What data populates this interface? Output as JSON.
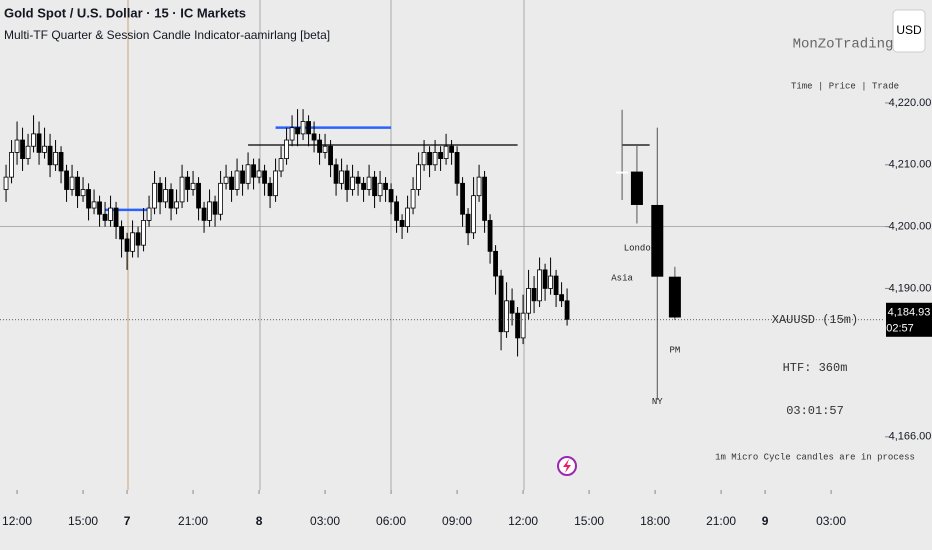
{
  "chart_data": {
    "type": "candlestick",
    "title": "Gold Spot / U.S. Dollar · 15 · IC Markets",
    "subtitle": "Multi-TF Quarter & Session Candle Indicator-aamirlang [beta]",
    "currency": "USD",
    "up_color": "#ffffff",
    "down_color": "#000000",
    "xlim": [
      -3.1,
      157.8
    ],
    "ylim": [
      4157.4,
      4236.65
    ],
    "xticks": [
      {
        "value": 0,
        "label": "12:00"
      },
      {
        "value": 12,
        "label": "15:00"
      },
      {
        "value": 20,
        "label": "7"
      },
      {
        "value": 32,
        "label": "21:00"
      },
      {
        "value": 44,
        "label": "8"
      },
      {
        "value": 56,
        "label": "03:00"
      },
      {
        "value": 68,
        "label": "06:00"
      },
      {
        "value": 80,
        "label": "09:00"
      },
      {
        "value": 92,
        "label": "12:00"
      },
      {
        "value": 104,
        "label": "15:00"
      },
      {
        "value": 116,
        "label": "18:00"
      },
      {
        "value": 128,
        "label": "21:00"
      },
      {
        "value": 136,
        "label": "9"
      },
      {
        "value": 148,
        "label": "03:00"
      }
    ],
    "yticks": [
      {
        "value": 4220,
        "label": "4,220.00"
      },
      {
        "value": 4210,
        "label": "4,210.00"
      },
      {
        "value": 4200,
        "label": "4,200.00"
      },
      {
        "value": 4190,
        "label": "4,190.00"
      },
      {
        "value": 4166,
        "label": "4,166.00"
      }
    ],
    "candles": [
      [
        -2,
        4206,
        4210,
        4204,
        4208
      ],
      [
        -1,
        4208,
        4214,
        4207,
        4212
      ],
      [
        0,
        4212,
        4217,
        4210,
        4214
      ],
      [
        1,
        4214,
        4216,
        4209,
        4211
      ],
      [
        2,
        4211,
        4215,
        4210,
        4213
      ],
      [
        3,
        4213,
        4218,
        4212,
        4215
      ],
      [
        4,
        4215,
        4217,
        4210,
        4212
      ],
      [
        5,
        4212,
        4216,
        4211,
        4213
      ],
      [
        6,
        4213,
        4215,
        4208,
        4210
      ],
      [
        7,
        4210,
        4214,
        4209,
        4212
      ],
      [
        8,
        4212,
        4213,
        4207,
        4209
      ],
      [
        9,
        4209,
        4210,
        4204,
        4206
      ],
      [
        10,
        4206,
        4210,
        4205,
        4208
      ],
      [
        11,
        4208,
        4209,
        4203,
        4205
      ],
      [
        12,
        4205,
        4208,
        4204,
        4206
      ],
      [
        13,
        4206,
        4207,
        4201,
        4203
      ],
      [
        14,
        4203,
        4206,
        4202,
        4204
      ],
      [
        15,
        4204,
        4205,
        4200,
        4202
      ],
      [
        16,
        4202,
        4204,
        4200,
        4201
      ],
      [
        17,
        4201,
        4205,
        4200,
        4203
      ],
      [
        18,
        4203,
        4204,
        4198,
        4200
      ],
      [
        19,
        4200,
        4201,
        4195,
        4198
      ],
      [
        20,
        4198,
        4199,
        4193,
        4196
      ],
      [
        21,
        4196,
        4201,
        4195,
        4199
      ],
      [
        22,
        4199,
        4200,
        4195,
        4197
      ],
      [
        23,
        4197,
        4203,
        4196,
        4201
      ],
      [
        24,
        4201,
        4205,
        4200,
        4203
      ],
      [
        25,
        4203,
        4209,
        4202,
        4207
      ],
      [
        26,
        4207,
        4208,
        4202,
        4204
      ],
      [
        27,
        4204,
        4208,
        4203,
        4206
      ],
      [
        28,
        4206,
        4207,
        4201,
        4203
      ],
      [
        29,
        4203,
        4206,
        4202,
        4204
      ],
      [
        30,
        4204,
        4210,
        4203,
        4208
      ],
      [
        31,
        4208,
        4209,
        4204,
        4206
      ],
      [
        32,
        4206,
        4209,
        4205,
        4207
      ],
      [
        33,
        4207,
        4208,
        4201,
        4203
      ],
      [
        34,
        4203,
        4204,
        4199,
        4201
      ],
      [
        35,
        4201,
        4206,
        4200,
        4204
      ],
      [
        36,
        4204,
        4205,
        4200,
        4202
      ],
      [
        37,
        4202,
        4209,
        4201,
        4207
      ],
      [
        38,
        4207,
        4210,
        4206,
        4208
      ],
      [
        39,
        4208,
        4209,
        4204,
        4206
      ],
      [
        40,
        4206,
        4211,
        4205,
        4209
      ],
      [
        41,
        4209,
        4210,
        4205,
        4207
      ],
      [
        42,
        4207,
        4212,
        4206,
        4210
      ],
      [
        43,
        4210,
        4211,
        4206,
        4208
      ],
      [
        44,
        4208,
        4211,
        4207,
        4209
      ],
      [
        45,
        4209,
        4210,
        4205,
        4207
      ],
      [
        46,
        4207,
        4208,
        4203,
        4205
      ],
      [
        47,
        4205,
        4211,
        4204,
        4209
      ],
      [
        48,
        4209,
        4213,
        4208,
        4211
      ],
      [
        49,
        4211,
        4216,
        4210,
        4214
      ],
      [
        50,
        4214,
        4218,
        4213,
        4216
      ],
      [
        51,
        4216,
        4219,
        4213,
        4215
      ],
      [
        52,
        4215,
        4219,
        4214,
        4217
      ],
      [
        53,
        4217,
        4218,
        4213,
        4215
      ],
      [
        54,
        4215,
        4217,
        4212,
        4214
      ],
      [
        55,
        4214,
        4215,
        4210,
        4212
      ],
      [
        56,
        4212,
        4215,
        4211,
        4213
      ],
      [
        57,
        4213,
        4214,
        4208,
        4210
      ],
      [
        58,
        4210,
        4211,
        4205,
        4207
      ],
      [
        59,
        4207,
        4211,
        4206,
        4209
      ],
      [
        60,
        4209,
        4210,
        4204,
        4206
      ],
      [
        61,
        4206,
        4210,
        4205,
        4208
      ],
      [
        62,
        4208,
        4209,
        4205,
        4207
      ],
      [
        63,
        4207,
        4208,
        4204,
        4206
      ],
      [
        64,
        4206,
        4210,
        4205,
        4208
      ],
      [
        65,
        4208,
        4209,
        4203,
        4205
      ],
      [
        66,
        4205,
        4209,
        4204,
        4207
      ],
      [
        67,
        4207,
        4208,
        4204,
        4206
      ],
      [
        68,
        4206,
        4207,
        4202,
        4204
      ],
      [
        69,
        4204,
        4205,
        4199,
        4201
      ],
      [
        70,
        4201,
        4202,
        4198,
        4200
      ],
      [
        71,
        4200,
        4205,
        4199,
        4203
      ],
      [
        72,
        4203,
        4208,
        4202,
        4206
      ],
      [
        73,
        4206,
        4212,
        4205,
        4210
      ],
      [
        74,
        4210,
        4214,
        4209,
        4212
      ],
      [
        75,
        4212,
        4213,
        4208,
        4210
      ],
      [
        76,
        4210,
        4214,
        4209,
        4212
      ],
      [
        77,
        4212,
        4213,
        4209,
        4211
      ],
      [
        78,
        4211,
        4215,
        4210,
        4213
      ],
      [
        79,
        4213,
        4214,
        4210,
        4212
      ],
      [
        80,
        4212,
        4213,
        4205,
        4207
      ],
      [
        81,
        4207,
        4208,
        4200,
        4202
      ],
      [
        82,
        4202,
        4203,
        4197,
        4199
      ],
      [
        83,
        4199,
        4208,
        4198,
        4205
      ],
      [
        84,
        4205,
        4210,
        4204,
        4208
      ],
      [
        85,
        4208,
        4209,
        4199,
        4201
      ],
      [
        86,
        4201,
        4202,
        4194,
        4196
      ],
      [
        87,
        4196,
        4197,
        4189,
        4192
      ],
      [
        88,
        4192,
        4193,
        4180,
        4183
      ],
      [
        89,
        4183,
        4191,
        4182,
        4188
      ],
      [
        90,
        4188,
        4190,
        4184,
        4186
      ],
      [
        91,
        4186,
        4187,
        4179,
        4182
      ],
      [
        92,
        4182,
        4189,
        4181,
        4186
      ],
      [
        93,
        4186,
        4193,
        4185,
        4190
      ],
      [
        94,
        4190,
        4192,
        4186,
        4188
      ],
      [
        95,
        4188,
        4195,
        4187,
        4193
      ],
      [
        96,
        4193,
        4194,
        4188,
        4190
      ],
      [
        97,
        4190,
        4195,
        4189,
        4192
      ],
      [
        98,
        4192,
        4193,
        4187,
        4189
      ],
      [
        99,
        4189,
        4191,
        4187,
        4188
      ],
      [
        100,
        4188,
        4190,
        4184,
        4185
      ]
    ],
    "session_candles": [
      {
        "name": "Asia",
        "x": 110,
        "ohlc": [
          4208.6,
          4218.9,
          4204.3,
          4208.9
        ]
      },
      {
        "name": "London",
        "x": 112.7,
        "ohlc": [
          4208.9,
          4213.2,
          4200.5,
          4203.5
        ]
      },
      {
        "name": "NY",
        "x": 116.4,
        "ohlc": [
          4203.5,
          4216.0,
          4172.0,
          4191.9
        ]
      },
      {
        "name": "PM",
        "x": 119.6,
        "ohlc": [
          4191.9,
          4193.5,
          4184.9,
          4185.3
        ]
      }
    ],
    "levels": [
      {
        "value": 4202.7,
        "color": "#2962ff",
        "x": [
          16,
          24
        ]
      },
      {
        "value": 4216.0,
        "color": "#2962ff",
        "x": [
          47,
          68
        ]
      },
      {
        "value": 4213.2,
        "color": "#000000",
        "x": [
          42,
          91
        ]
      },
      {
        "value": 4213.2,
        "color": "#000000",
        "x": [
          110,
          115
        ]
      }
    ],
    "last_price": {
      "value": 4184.93,
      "label": "4,184.93"
    },
    "countdown": "02:57",
    "panel": {
      "brand": "MonZoTrading",
      "menu": "Time | Price | Trade",
      "symbol": "XAUUSD (15m)",
      "htf": "HTF: 360m",
      "timer": "03:01:57",
      "status": "1m Micro Cycle candles are in process"
    }
  }
}
